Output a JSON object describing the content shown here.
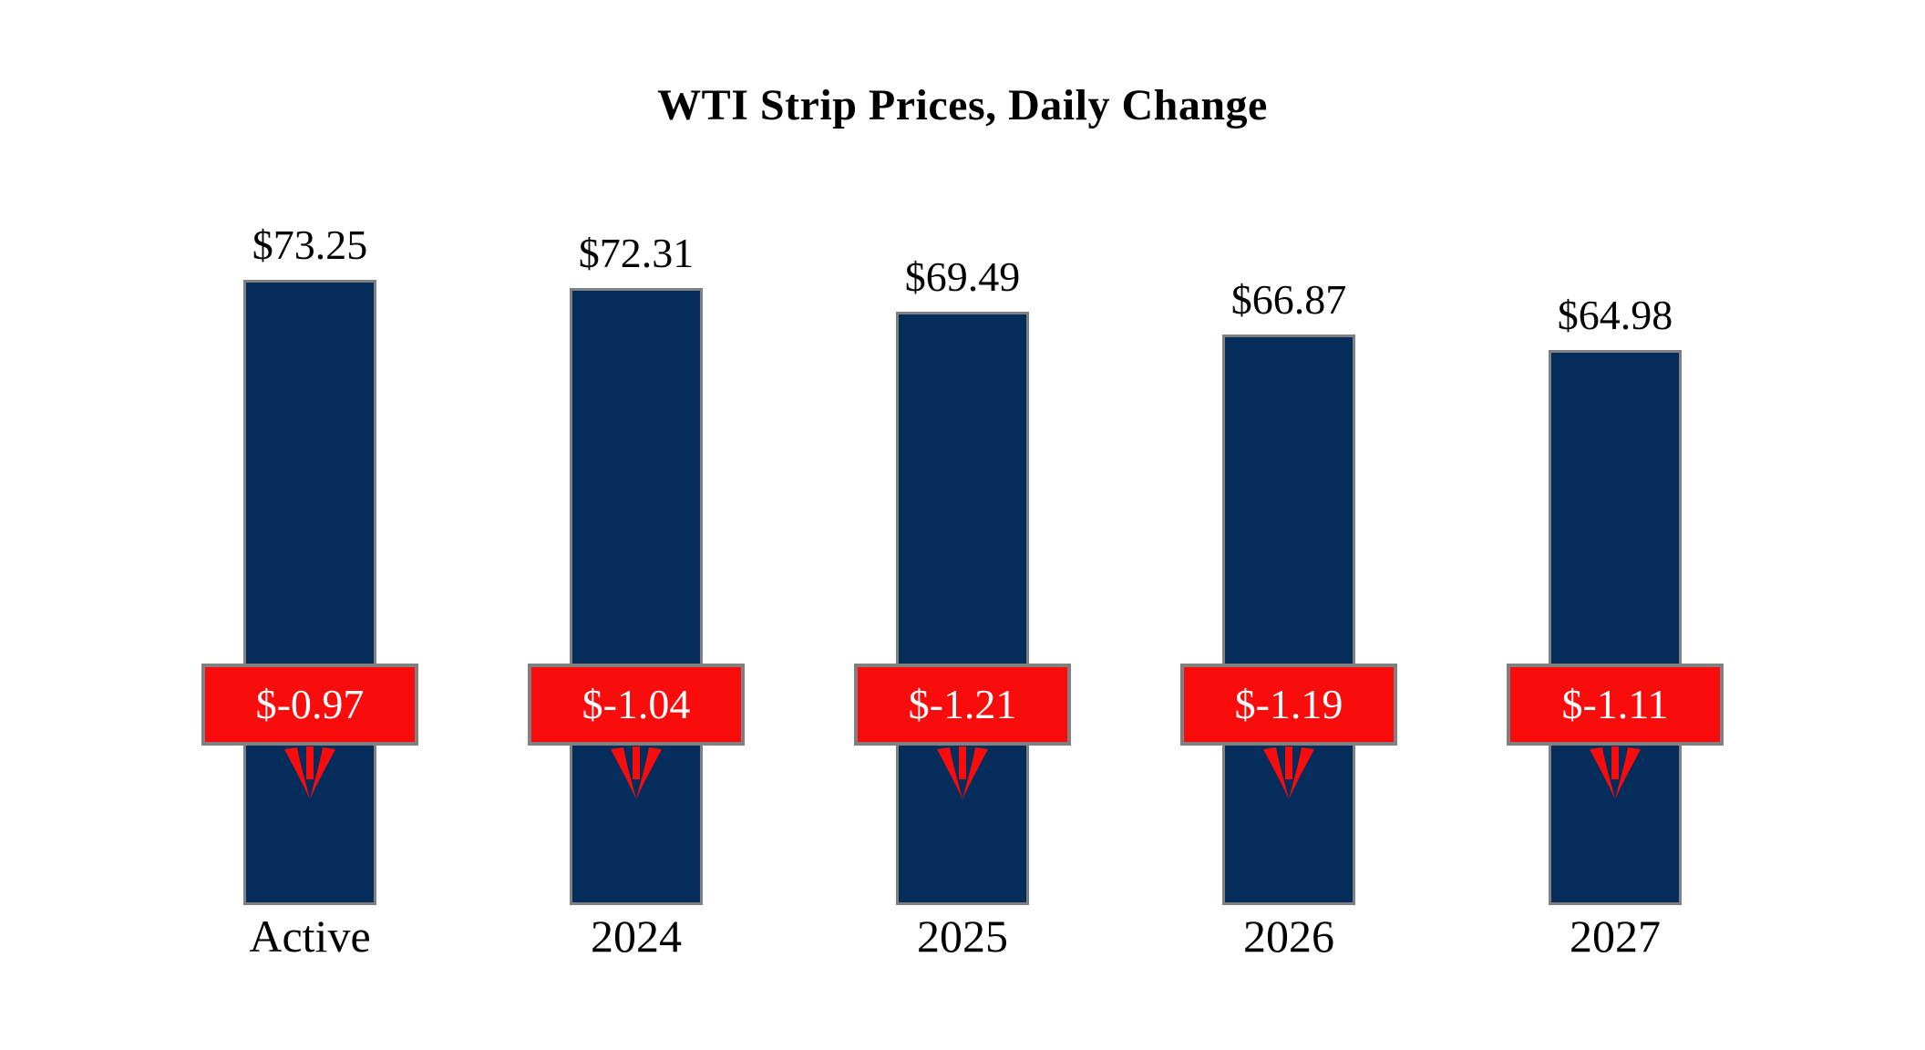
{
  "title": "WTI Strip Prices, Daily Change",
  "chart_data": {
    "type": "bar",
    "title": "WTI Strip Prices, Daily Change",
    "categories": [
      "Active",
      "2024",
      "2025",
      "2026",
      "2027"
    ],
    "series": [
      {
        "name": "Strip Price",
        "values": [
          73.25,
          72.31,
          69.49,
          66.87,
          64.98
        ]
      },
      {
        "name": "Daily Change",
        "values": [
          -0.97,
          -1.04,
          -1.21,
          -1.19,
          -1.11
        ]
      }
    ],
    "value_labels": [
      "$73.25",
      "$72.31",
      "$69.49",
      "$66.87",
      "$64.98"
    ],
    "change_labels": [
      "$-0.97",
      "$-1.04",
      "$-1.21",
      "$-1.19",
      "$-1.11"
    ],
    "xlabel": "",
    "ylabel": "",
    "ylim": [
      0,
      73.25
    ],
    "grid": false,
    "legend": "none",
    "colors": {
      "bar": "#052D5C",
      "change_box": "#FB0C0C",
      "box_border": "#808080",
      "change_text": "#FFFFFF",
      "label_text": "#000000",
      "background": "#FFFFFF"
    }
  }
}
